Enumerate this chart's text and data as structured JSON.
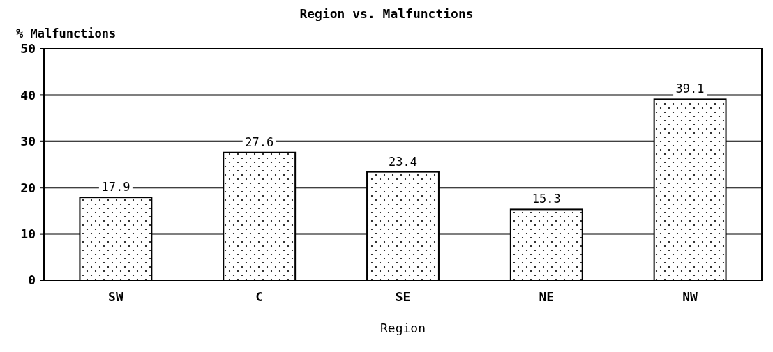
{
  "chart_data": {
    "type": "bar",
    "title": "Region vs. Malfunctions",
    "xlabel": "Region",
    "ylabel": "% Malfunctions",
    "categories": [
      "SW",
      "C",
      "SE",
      "NE",
      "NW"
    ],
    "values": [
      17.9,
      27.6,
      23.4,
      15.3,
      39.1
    ],
    "color": "#ffffff",
    "ylim": [
      0,
      50
    ],
    "yticks": [
      0,
      10,
      20,
      30,
      40,
      50
    ],
    "grid": "y",
    "data_labels": true
  }
}
